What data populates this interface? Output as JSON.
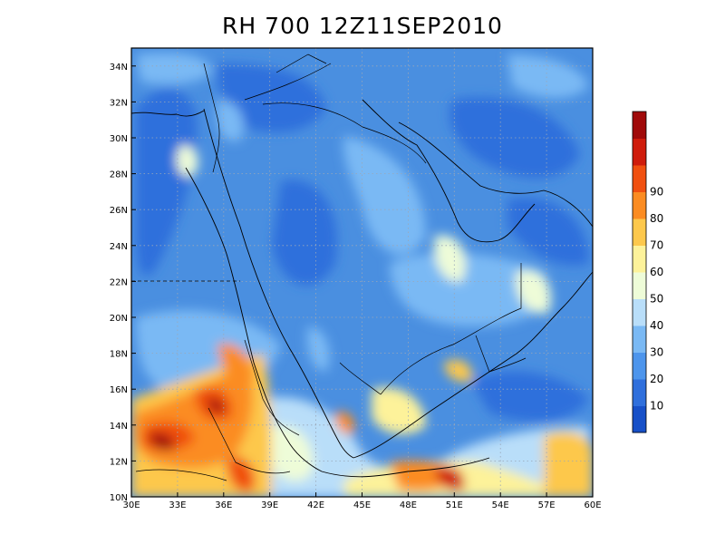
{
  "title": "RH 700  12Z11SEP2010",
  "map": {
    "lon_labels": [
      "30E",
      "33E",
      "36E",
      "39E",
      "42E",
      "45E",
      "48E",
      "51E",
      "54E",
      "57E",
      "60E"
    ],
    "lat_labels": [
      "10N",
      "12N",
      "14N",
      "16N",
      "18N",
      "20N",
      "22N",
      "24N",
      "26N",
      "28N",
      "30N",
      "32N",
      "34N"
    ],
    "lon_range": [
      30,
      60
    ],
    "lat_range": [
      10,
      35
    ],
    "grid": "dotted",
    "field": "relative humidity at 700 hPa",
    "background_color": "#4a8fe0"
  },
  "colorbar": {
    "labels": [
      "10",
      "20",
      "30",
      "40",
      "50",
      "60",
      "70",
      "80",
      "90"
    ],
    "colors": [
      "#1750c8",
      "#2f6fdc",
      "#4d95ec",
      "#7ab9f4",
      "#b9def9",
      "#eefcd8",
      "#fdf29a",
      "#fdc84c",
      "#fb8c22",
      "#f05010",
      "#cf1c0c",
      "#a00a0a"
    ]
  }
}
